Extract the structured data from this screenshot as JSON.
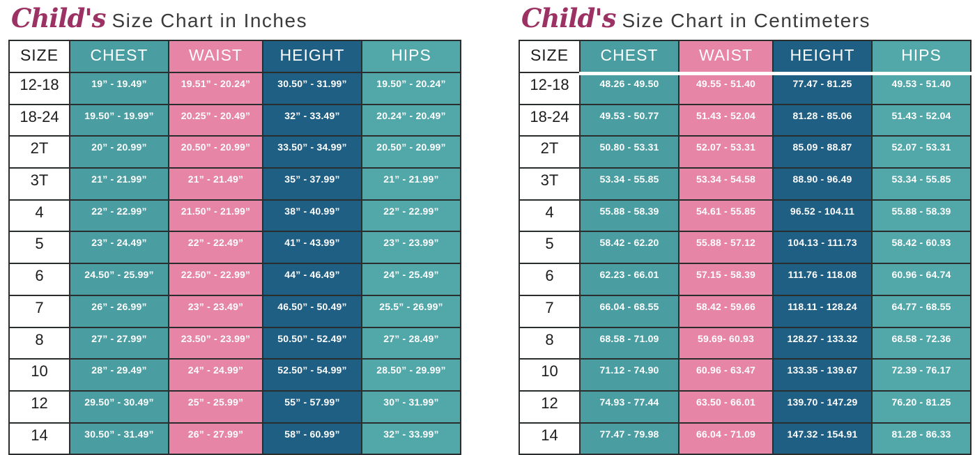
{
  "colors": {
    "chest": "#4A9EA2",
    "waist": "#E685A6",
    "height": "#1F5F84",
    "hips": "#52A7A9",
    "border": "#2A2D2E",
    "title_script": "#9C3263",
    "title_text": "#3B3B3B",
    "size_text": "#1C1C1C"
  },
  "chart_data": [
    {
      "type": "table",
      "title": "Child's Size Chart in Inches",
      "title_script": "Child's",
      "title_rest": "Size Chart in Inches",
      "columns": [
        "SIZE",
        "CHEST",
        "WAIST",
        "HEIGHT",
        "HIPS"
      ],
      "column_keys": [
        "size",
        "chest",
        "waist",
        "height",
        "hips"
      ],
      "rows": [
        [
          "12-18",
          "19” - 19.49”",
          "19.51” - 20.24”",
          "30.50” - 31.99”",
          "19.50” - 20.24”"
        ],
        [
          "18-24",
          "19.50” - 19.99”",
          "20.25” - 20.49”",
          "32” - 33.49”",
          "20.24” - 20.49”"
        ],
        [
          "2T",
          "20” - 20.99”",
          "20.50” - 20.99”",
          "33.50” - 34.99”",
          "20.50” - 20.99”"
        ],
        [
          "3T",
          "21” - 21.99”",
          "21” - 21.49”",
          "35” - 37.99”",
          "21” - 21.99”"
        ],
        [
          "4",
          "22” - 22.99”",
          "21.50” - 21.99”",
          "38” - 40.99”",
          "22” - 22.99”"
        ],
        [
          "5",
          "23” - 24.49”",
          "22” - 22.49”",
          "41” - 43.99”",
          "23” - 23.99”"
        ],
        [
          "6",
          "24.50” - 25.99”",
          "22.50” - 22.99”",
          "44” - 46.49”",
          "24” - 25.49”"
        ],
        [
          "7",
          "26” - 26.99”",
          "23” - 23.49”",
          "46.50” - 50.49”",
          "25.5” - 26.99”"
        ],
        [
          "8",
          "27” - 27.99”",
          "23.50” - 23.99”",
          "50.50” - 52.49”",
          "27” - 28.49”"
        ],
        [
          "10",
          "28” - 29.49”",
          "24” - 24.99”",
          "52.50” - 54.99”",
          "28.50” - 29.99”"
        ],
        [
          "12",
          "29.50” - 30.49”",
          "25” - 25.99”",
          "55” - 57.99”",
          "30” - 31.99”"
        ],
        [
          "14",
          "30.50” - 31.49”",
          "26” - 27.99”",
          "58” - 60.99”",
          "32” - 33.99”"
        ]
      ]
    },
    {
      "type": "table",
      "title": "Child's Size Chart in Centimeters",
      "title_script": "Child's",
      "title_rest": "Size Chart in Centimeters",
      "columns": [
        "SIZE",
        "CHEST",
        "WAIST",
        "HEIGHT",
        "HIPS"
      ],
      "column_keys": [
        "size",
        "chest",
        "waist",
        "height",
        "hips"
      ],
      "rows": [
        [
          "12-18",
          "48.26 - 49.50",
          "49.55 - 51.40",
          "77.47 - 81.25",
          "49.53 - 51.40"
        ],
        [
          "18-24",
          "49.53 - 50.77",
          "51.43 - 52.04",
          "81.28 - 85.06",
          "51.43 - 52.04"
        ],
        [
          "2T",
          "50.80 - 53.31",
          "52.07 - 53.31",
          "85.09 - 88.87",
          "52.07 - 53.31"
        ],
        [
          "3T",
          "53.34 - 55.85",
          "53.34 - 54.58",
          "88.90 - 96.49",
          "53.34 - 55.85"
        ],
        [
          "4",
          "55.88 - 58.39",
          "54.61 - 55.85",
          "96.52 - 104.11",
          "55.88 - 58.39"
        ],
        [
          "5",
          "58.42 - 62.20",
          "55.88 - 57.12",
          "104.13 - 111.73",
          "58.42 - 60.93"
        ],
        [
          "6",
          "62.23 - 66.01",
          "57.15 - 58.39",
          "111.76 - 118.08",
          "60.96 - 64.74"
        ],
        [
          "7",
          "66.04 - 68.55",
          "58.42 - 59.66",
          "118.11 - 128.24",
          "64.77 - 68.55"
        ],
        [
          "8",
          "68.58 - 71.09",
          "59.69- 60.93",
          "128.27 - 133.32",
          "68.58 - 72.36"
        ],
        [
          "10",
          "71.12 - 74.90",
          "60.96 - 63.47",
          "133.35 - 139.67",
          "72.39 - 76.17"
        ],
        [
          "12",
          "74.93 - 77.44",
          "63.50 - 66.01",
          "139.70 - 147.29",
          "76.20 - 81.25"
        ],
        [
          "14",
          "77.47 - 79.98",
          "66.04 - 71.09",
          "147.32 - 154.91",
          "81.28 - 86.33"
        ]
      ]
    }
  ]
}
